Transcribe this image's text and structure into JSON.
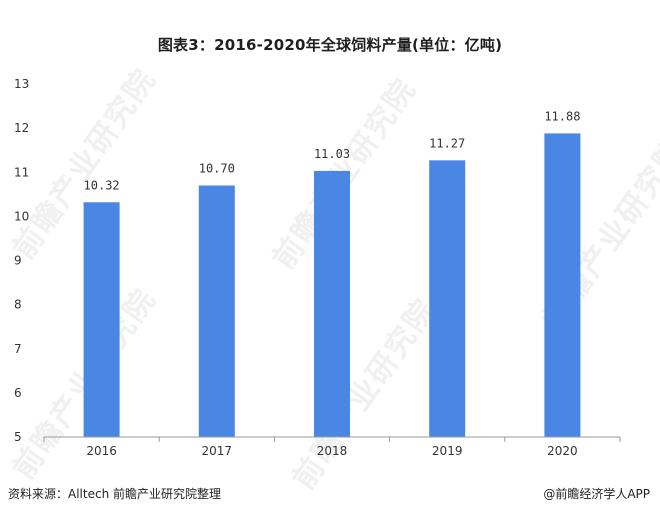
{
  "title": "图表3：2016-2020年全球饲料产量(单位：亿吨)",
  "source": "资料来源：Alltech 前瞻产业研究院整理",
  "credit": "@前瞻经济学人APP",
  "watermark": "前瞻产业研究院",
  "colors": {
    "bar": "#4a86e3",
    "axis": "#9a9a9a",
    "text": "#333333"
  },
  "chart_data": {
    "type": "bar",
    "title": "图表3：2016-2020年全球饲料产量(单位：亿吨)",
    "categories": [
      "2016",
      "2017",
      "2018",
      "2019",
      "2020"
    ],
    "values": [
      10.32,
      10.7,
      11.03,
      11.27,
      11.88
    ],
    "value_labels": [
      "10.32",
      "10.70",
      "11.03",
      "11.27",
      "11.88"
    ],
    "ylim": [
      5,
      13
    ],
    "yticks": [
      5,
      6,
      7,
      8,
      9,
      10,
      11,
      12,
      13
    ],
    "xlabel": "",
    "ylabel": "",
    "grid": false,
    "legend": "none"
  }
}
